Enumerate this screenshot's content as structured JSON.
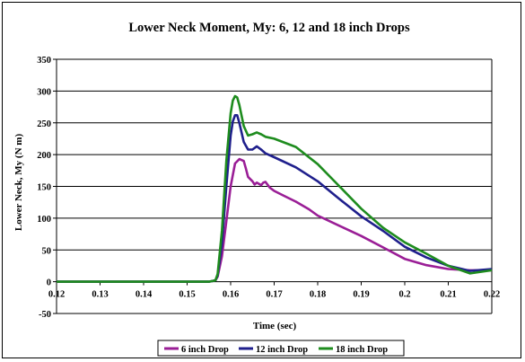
{
  "chart_data": {
    "type": "line",
    "title": "Lower Neck Moment, My: 6, 12 and 18 inch Drops",
    "xlabel": "Time (sec)",
    "ylabel": "Lower Neck, My (N m)",
    "xlim": [
      0.12,
      0.22
    ],
    "ylim": [
      -50,
      350
    ],
    "xticks": [
      "0.12",
      "0.13",
      "0.14",
      "0.15",
      "0.16",
      "0.17",
      "0.18",
      "0.19",
      "0.2",
      "0.21",
      "0.22"
    ],
    "yticks": [
      "-50",
      "0",
      "50",
      "100",
      "150",
      "200",
      "250",
      "300",
      "350"
    ],
    "grid": "horizontal",
    "legend_position": "bottom",
    "series": [
      {
        "name": "6 inch Drop",
        "color": "#9A1E96",
        "x": [
          0.12,
          0.155,
          0.1565,
          0.157,
          0.158,
          0.159,
          0.16,
          0.161,
          0.162,
          0.163,
          0.1635,
          0.164,
          0.165,
          0.1655,
          0.166,
          0.167,
          0.1675,
          0.168,
          0.169,
          0.17,
          0.172,
          0.175,
          0.178,
          0.18,
          0.185,
          0.19,
          0.195,
          0.2,
          0.205,
          0.21,
          0.215,
          0.22
        ],
        "y": [
          0,
          0,
          2,
          8,
          40,
          95,
          150,
          186,
          193,
          190,
          178,
          165,
          158,
          153,
          156,
          152,
          156,
          157,
          148,
          143,
          136,
          126,
          114,
          104,
          88,
          72,
          54,
          36,
          26,
          20,
          18,
          18
        ]
      },
      {
        "name": "12 inch Drop",
        "color": "#1F1F8C",
        "x": [
          0.12,
          0.155,
          0.1565,
          0.157,
          0.158,
          0.159,
          0.16,
          0.1605,
          0.161,
          0.1615,
          0.162,
          0.163,
          0.164,
          0.165,
          0.166,
          0.167,
          0.168,
          0.17,
          0.175,
          0.18,
          0.185,
          0.19,
          0.195,
          0.2,
          0.205,
          0.21,
          0.215,
          0.22
        ],
        "y": [
          0,
          0,
          2,
          10,
          60,
          150,
          230,
          252,
          262,
          262,
          250,
          220,
          208,
          208,
          213,
          208,
          202,
          196,
          180,
          158,
          130,
          103,
          80,
          55,
          38,
          25,
          17,
          20
        ]
      },
      {
        "name": "18 inch Drop",
        "color": "#1E8C1E",
        "x": [
          0.12,
          0.155,
          0.1565,
          0.157,
          0.158,
          0.159,
          0.16,
          0.1605,
          0.161,
          0.1615,
          0.162,
          0.163,
          0.164,
          0.165,
          0.166,
          0.167,
          0.168,
          0.17,
          0.175,
          0.18,
          0.185,
          0.19,
          0.195,
          0.2,
          0.205,
          0.21,
          0.215,
          0.22
        ],
        "y": [
          0,
          0,
          2,
          12,
          80,
          190,
          265,
          285,
          292,
          290,
          278,
          245,
          230,
          232,
          235,
          232,
          228,
          225,
          212,
          185,
          150,
          115,
          85,
          62,
          44,
          25,
          13,
          18
        ]
      }
    ]
  }
}
